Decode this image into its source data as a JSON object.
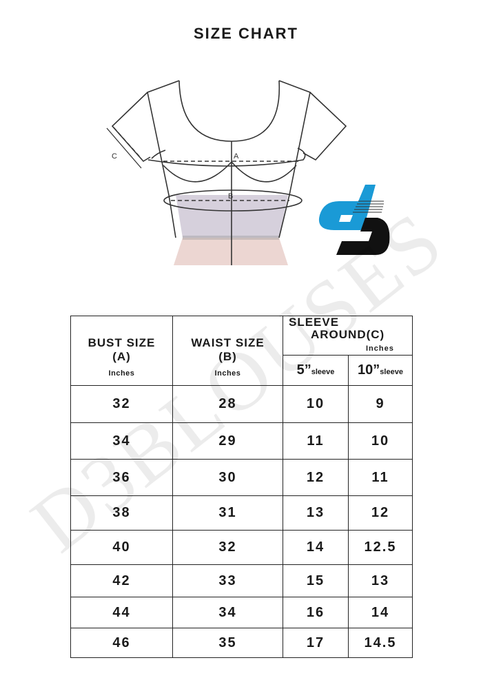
{
  "title": "SIZE CHART",
  "diagram": {
    "label_a": "A",
    "label_b": "B",
    "label_c": "C"
  },
  "logo": {
    "text": "d3",
    "colors": {
      "blue": "#1a9ad6",
      "black": "#111111"
    }
  },
  "watermark": "D3BLOUSES",
  "table": {
    "headers": {
      "bust": "BUST SIZE",
      "bust_code": "(A)",
      "bust_unit": "Inches",
      "waist": "WAIST SIZE",
      "waist_code": "(B)",
      "waist_unit": "Inches",
      "sleeve_line1": "SLEEVE",
      "sleeve_line2": "AROUND",
      "sleeve_code": "(C)",
      "sleeve_unit": "Inches",
      "sleeve_5": "5”",
      "sleeve_5_sub": "sleeve",
      "sleeve_10": "10”",
      "sleeve_10_sub": "sleeve"
    },
    "rows": [
      [
        "32",
        "28",
        "10",
        "9"
      ],
      [
        "34",
        "29",
        "11",
        "10"
      ],
      [
        "36",
        "30",
        "12",
        "11"
      ],
      [
        "38",
        "31",
        "13",
        "12"
      ],
      [
        "40",
        "32",
        "14",
        "12.5"
      ],
      [
        "42",
        "33",
        "15",
        "13"
      ],
      [
        "44",
        "34",
        "16",
        "14"
      ],
      [
        "46",
        "35",
        "17",
        "14.5"
      ]
    ]
  }
}
